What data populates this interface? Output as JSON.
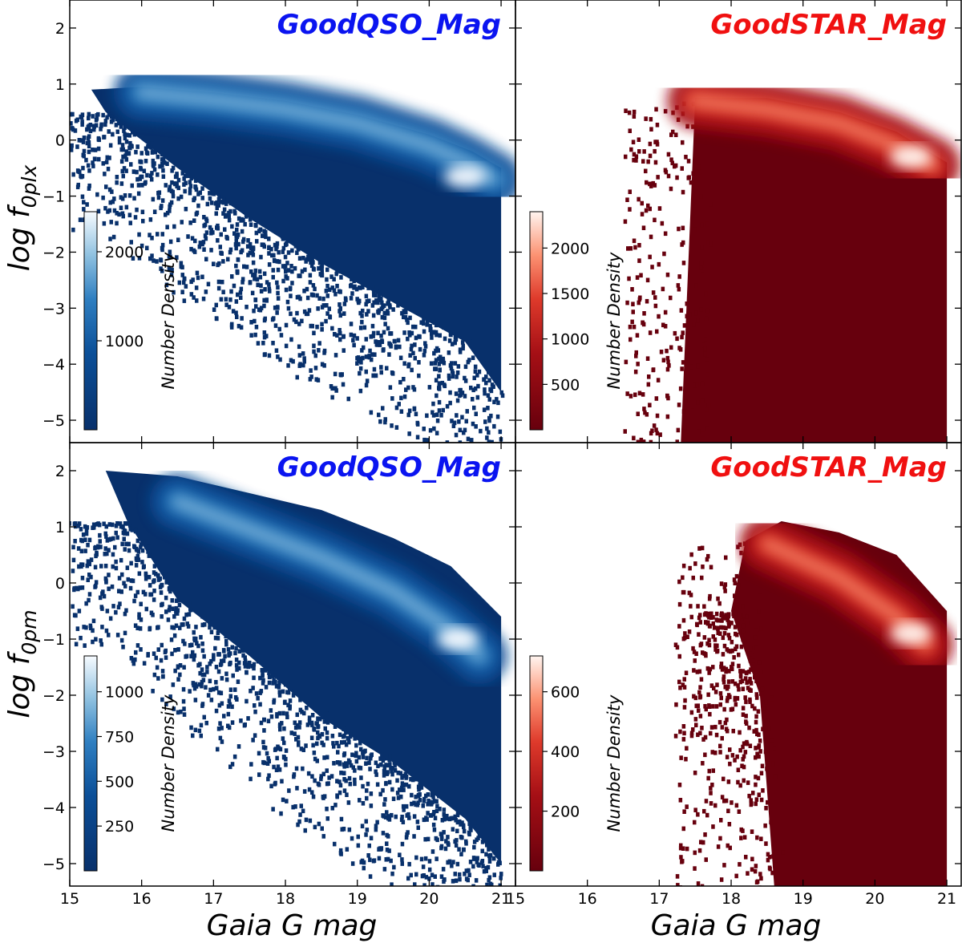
{
  "figure": {
    "x_axis_label": "Gaia G mag",
    "y_axis_label_top": "log f",
    "y_axis_sub_top": "0plx",
    "y_axis_label_bottom": "log f",
    "y_axis_sub_bottom": "0pm",
    "colorbar_label": "Number Density"
  },
  "chart_data": [
    {
      "type": "heatmap",
      "panel": "top-left",
      "title": "GoodQSO_Mag",
      "title_color": "#0a14f0",
      "colormap": "Blues_r",
      "x_range": [
        15,
        21.2
      ],
      "y_range": [
        -5.4,
        2.5
      ],
      "x_ticks": [
        15,
        16,
        17,
        18,
        19,
        20,
        21
      ],
      "y_ticks": [
        -5,
        -4,
        -3,
        -2,
        -1,
        0,
        1,
        2
      ],
      "colorbar_ticks": [
        1000,
        2000
      ],
      "colorbar_max": 2450,
      "colorbar_label": "Number Density",
      "density_ridge": [
        [
          16.0,
          0.85
        ],
        [
          17.0,
          0.72
        ],
        [
          18.0,
          0.55
        ],
        [
          19.0,
          0.3
        ],
        [
          20.0,
          -0.1
        ],
        [
          20.5,
          -0.4
        ],
        [
          20.9,
          -0.7
        ]
      ],
      "peak_density_at": [
        20.5,
        -0.65
      ],
      "occupied_region": {
        "upper_edge": [
          [
            15.3,
            0.9
          ],
          [
            16.0,
            0.95
          ],
          [
            17.0,
            0.85
          ],
          [
            18.0,
            0.7
          ],
          [
            19.0,
            0.45
          ],
          [
            20.0,
            0.1
          ],
          [
            20.6,
            -0.2
          ],
          [
            21.0,
            -0.5
          ]
        ],
        "lower_edge": [
          [
            15.5,
            0.5
          ],
          [
            16.5,
            -0.5
          ],
          [
            17.5,
            -1.4
          ],
          [
            18.5,
            -2.2
          ],
          [
            19.5,
            -2.9
          ],
          [
            20.5,
            -3.6
          ],
          [
            21.0,
            -4.5
          ]
        ]
      }
    },
    {
      "type": "heatmap",
      "panel": "top-right",
      "title": "GoodSTAR_Mag",
      "title_color": "#f01010",
      "colormap": "Reds_r",
      "x_range": [
        15,
        21.2
      ],
      "y_range": [
        -5.4,
        2.5
      ],
      "x_ticks": [
        15,
        16,
        17,
        18,
        19,
        20,
        21
      ],
      "y_ticks": [
        -5,
        -4,
        -3,
        -2,
        -1,
        0,
        1,
        2
      ],
      "colorbar_ticks": [
        500,
        1000,
        1500,
        2000
      ],
      "colorbar_max": 2400,
      "colorbar_label": "Number Density",
      "density_ridge": [
        [
          17.5,
          0.7
        ],
        [
          18.5,
          0.55
        ],
        [
          19.5,
          0.3
        ],
        [
          20.2,
          -0.05
        ],
        [
          20.8,
          -0.45
        ]
      ],
      "peak_density_at": [
        20.5,
        -0.3
      ],
      "occupied_region": {
        "upper_edge": [
          [
            17.5,
            0.75
          ],
          [
            18.5,
            0.75
          ],
          [
            19.5,
            0.5
          ],
          [
            20.3,
            0.15
          ],
          [
            21.0,
            -0.4
          ]
        ],
        "lower_edge": [
          [
            17.3,
            -5.4
          ],
          [
            21.0,
            -5.4
          ]
        ]
      }
    },
    {
      "type": "heatmap",
      "panel": "bottom-left",
      "title": "GoodQSO_Mag",
      "title_color": "#0a14f0",
      "colormap": "Blues_r",
      "x_range": [
        15,
        21.2
      ],
      "y_range": [
        -5.4,
        2.5
      ],
      "x_ticks": [
        15,
        16,
        17,
        18,
        19,
        20,
        21
      ],
      "y_ticks": [
        -5,
        -4,
        -3,
        -2,
        -1,
        0,
        1,
        2
      ],
      "colorbar_ticks": [
        250,
        500,
        750,
        1000
      ],
      "colorbar_max": 1200,
      "colorbar_label": "Number Density",
      "density_ridge": [
        [
          16.5,
          1.45
        ],
        [
          17.5,
          0.95
        ],
        [
          18.5,
          0.45
        ],
        [
          19.5,
          -0.15
        ],
        [
          20.2,
          -0.75
        ],
        [
          20.7,
          -1.3
        ]
      ],
      "peak_density_at": [
        20.4,
        -1.0
      ],
      "occupied_region": {
        "upper_edge": [
          [
            15.5,
            2.0
          ],
          [
            16.5,
            1.9
          ],
          [
            17.5,
            1.6
          ],
          [
            18.5,
            1.3
          ],
          [
            19.5,
            0.8
          ],
          [
            20.3,
            0.3
          ],
          [
            21.0,
            -0.6
          ]
        ],
        "lower_edge": [
          [
            15.8,
            1.1
          ],
          [
            16.5,
            -0.3
          ],
          [
            17.5,
            -1.3
          ],
          [
            18.5,
            -2.4
          ],
          [
            19.5,
            -3.2
          ],
          [
            20.5,
            -4.2
          ],
          [
            21.0,
            -5.0
          ]
        ]
      }
    },
    {
      "type": "heatmap",
      "panel": "bottom-right",
      "title": "GoodSTAR_Mag",
      "title_color": "#f01010",
      "colormap": "Reds_r",
      "x_range": [
        15,
        21.2
      ],
      "y_range": [
        -5.4,
        2.5
      ],
      "x_ticks": [
        15,
        16,
        17,
        18,
        19,
        20,
        21
      ],
      "y_ticks": [
        -5,
        -4,
        -3,
        -2,
        -1,
        0,
        1,
        2
      ],
      "colorbar_ticks": [
        200,
        400,
        600
      ],
      "colorbar_max": 720,
      "colorbar_label": "Number Density",
      "density_ridge": [
        [
          18.5,
          0.7
        ],
        [
          19.5,
          0.1
        ],
        [
          20.3,
          -0.6
        ],
        [
          20.7,
          -1.1
        ]
      ],
      "peak_density_at": [
        20.5,
        -0.9
      ],
      "occupied_region": {
        "upper_edge": [
          [
            18.2,
            0.75
          ],
          [
            18.7,
            1.1
          ],
          [
            19.5,
            0.9
          ],
          [
            20.3,
            0.5
          ],
          [
            21.0,
            -0.5
          ]
        ],
        "lower_edge": [
          [
            18.0,
            -0.5
          ],
          [
            18.4,
            -2.0
          ],
          [
            18.6,
            -5.4
          ],
          [
            21.0,
            -5.4
          ]
        ]
      }
    }
  ]
}
